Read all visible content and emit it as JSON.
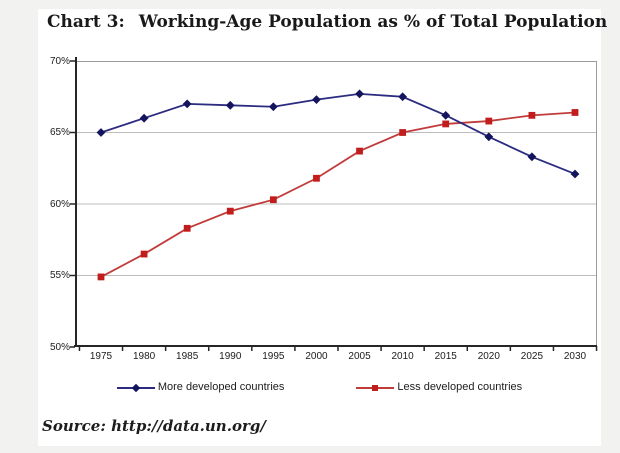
{
  "header": {
    "chart_label": "Chart 3:",
    "title": "Working-Age Population as % of Total Population"
  },
  "source_note": "Source: http://data.un.org/",
  "colors": {
    "background": "#f2f2f1",
    "card": "#ffffff",
    "grid": "#bdbdbd",
    "plot_border": "#9a9a9a",
    "axis": "#262626",
    "series_more_developed_line": "#2b2b80",
    "series_more_developed_marker": "#15155e",
    "series_less_developed_line": "#c23b3b",
    "series_less_developed_marker": "#c21d1d"
  },
  "chart_data": {
    "type": "line",
    "title": "Chart 3: Working-Age Population as % of Total Population",
    "categories": [
      "1975",
      "1980",
      "1985",
      "1990",
      "1995",
      "2000",
      "2005",
      "2010",
      "2015",
      "2020",
      "2025",
      "2030"
    ],
    "series": [
      {
        "name": "More developed countries",
        "marker": "diamond",
        "line_color": "#2b2b80",
        "marker_color": "#15155e",
        "values": [
          65.0,
          66.0,
          67.0,
          66.9,
          66.8,
          67.3,
          67.7,
          67.5,
          66.2,
          64.7,
          63.3,
          62.1
        ]
      },
      {
        "name": "Less developed countries",
        "marker": "square",
        "line_color": "#c23b3b",
        "marker_color": "#c21d1d",
        "values": [
          54.9,
          56.5,
          58.3,
          59.5,
          60.3,
          61.8,
          63.7,
          65.0,
          65.6,
          65.8,
          66.2,
          66.4
        ]
      }
    ],
    "xlabel": "",
    "ylabel": "",
    "ylim": [
      50,
      70
    ],
    "ytick_step": 5,
    "ytick_format": "percent",
    "grid": true,
    "legend_position": "bottom"
  }
}
